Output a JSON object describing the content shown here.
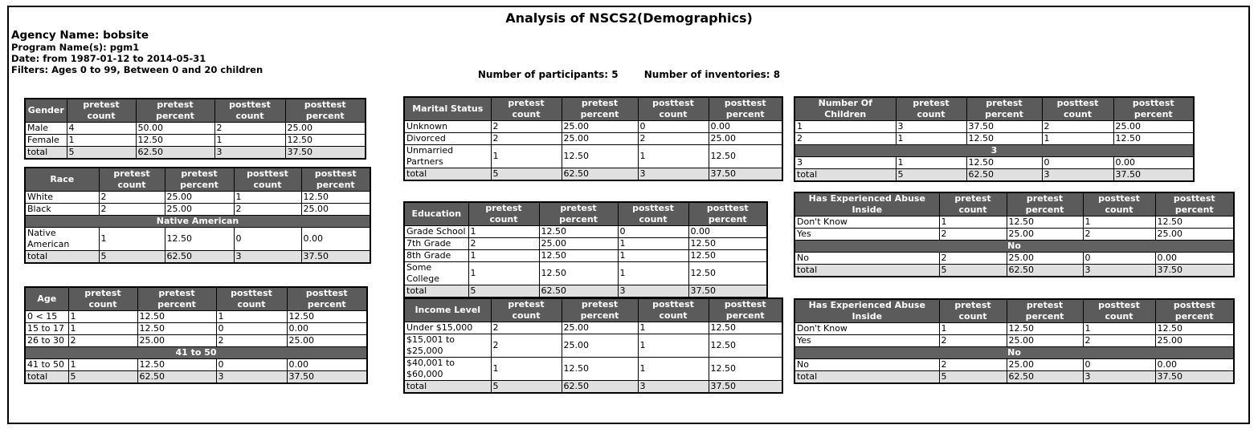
{
  "page": {
    "title": "Analysis of NSCS2(Demographics)",
    "meta_agency": "Agency Name: bobsite",
    "meta_program": "Program Name(s): pgm1",
    "meta_date": "Date: from 1987-01-12 to 2014-05-31",
    "meta_filters": "Filters: Ages 0 to 99, Between 0 and 20 children",
    "participants": "Number of participants: 5",
    "inventories": "Number of inventories: 8"
  },
  "colors": {
    "header_bg": "#5b5b5b",
    "section_bg": "#616161",
    "total_bg": "#e0e0e0",
    "header_text": "#ffffff",
    "border": "#000000"
  },
  "tables": {
    "gender": {
      "headers": [
        "Gender",
        "pretest count",
        "pretest percent",
        "posttest count",
        "posttest percent"
      ],
      "rows": [
        {
          "type": "data",
          "cells": [
            "Male",
            "4",
            "50.00",
            "2",
            "25.00"
          ]
        },
        {
          "type": "data",
          "cells": [
            "Female",
            "1",
            "12.50",
            "1",
            "12.50"
          ]
        },
        {
          "type": "total",
          "cells": [
            "total",
            "5",
            "62.50",
            "3",
            "37.50"
          ]
        }
      ]
    },
    "race": {
      "headers": [
        "Race",
        "pretest\ncount",
        "pretest\npercent",
        "posttest\ncount",
        "posttest\npercent"
      ],
      "rows": [
        {
          "type": "data",
          "cells": [
            "White",
            "2",
            "25.00",
            "1",
            "12.50"
          ]
        },
        {
          "type": "data",
          "cells": [
            "Black",
            "2",
            "25.00",
            "2",
            "25.00"
          ]
        },
        {
          "type": "section",
          "label": "Native American"
        },
        {
          "type": "data",
          "cells": [
            "Native\nAmerican",
            "1",
            "12.50",
            "0",
            "0.00"
          ]
        },
        {
          "type": "total",
          "cells": [
            "total",
            "5",
            "62.50",
            "3",
            "37.50"
          ]
        }
      ]
    },
    "age": {
      "headers": [
        "Age",
        "pretest count",
        "pretest percent",
        "posttest count",
        "posttest percent"
      ],
      "rows": [
        {
          "type": "data",
          "cells": [
            "0 < 15",
            "1",
            "12.50",
            "1",
            "12.50"
          ]
        },
        {
          "type": "data",
          "cells": [
            "15 to 17",
            "1",
            "12.50",
            "0",
            "0.00"
          ]
        },
        {
          "type": "data",
          "cells": [
            "26 to 30",
            "2",
            "25.00",
            "2",
            "25.00"
          ]
        },
        {
          "type": "section",
          "label": "41 to 50"
        },
        {
          "type": "data",
          "cells": [
            "41 to 50",
            "1",
            "12.50",
            "0",
            "0.00"
          ]
        },
        {
          "type": "total",
          "cells": [
            "total",
            "5",
            "62.50",
            "3",
            "37.50"
          ]
        }
      ]
    },
    "marital": {
      "headers": [
        "Marital Status",
        "pretest\ncount",
        "pretest\npercent",
        "posttest\ncount",
        "posttest\npercent"
      ],
      "rows": [
        {
          "type": "data",
          "cells": [
            "Unknown",
            "2",
            "25.00",
            "0",
            "0.00"
          ]
        },
        {
          "type": "data",
          "cells": [
            "Divorced",
            "2",
            "25.00",
            "2",
            "25.00"
          ]
        },
        {
          "type": "data",
          "cells": [
            "Unmarried\nPartners",
            "1",
            "12.50",
            "1",
            "12.50"
          ]
        },
        {
          "type": "total",
          "cells": [
            "total",
            "5",
            "62.50",
            "3",
            "37.50"
          ]
        }
      ]
    },
    "education": {
      "headers": [
        "Education",
        "pretest count",
        "pretest percent",
        "posttest count",
        "posttest percent"
      ],
      "rows": [
        {
          "type": "data",
          "cells": [
            "Grade School",
            "1",
            "12.50",
            "0",
            "0.00"
          ]
        },
        {
          "type": "data",
          "cells": [
            "7th Grade",
            "2",
            "25.00",
            "1",
            "12.50"
          ]
        },
        {
          "type": "data",
          "cells": [
            "8th Grade",
            "1",
            "12.50",
            "1",
            "12.50"
          ]
        },
        {
          "type": "data",
          "cells": [
            "Some College",
            "1",
            "12.50",
            "1",
            "12.50"
          ]
        },
        {
          "type": "total",
          "cells": [
            "total",
            "5",
            "62.50",
            "3",
            "37.50"
          ]
        }
      ]
    },
    "income": {
      "headers": [
        "Income Level",
        "pretest\ncount",
        "pretest\npercent",
        "posttest\ncount",
        "posttest\npercent"
      ],
      "rows": [
        {
          "type": "data",
          "cells": [
            "Under $15,000",
            "2",
            "25.00",
            "1",
            "12.50"
          ]
        },
        {
          "type": "data",
          "cells": [
            "$15,001 to\n$25,000",
            "2",
            "25.00",
            "1",
            "12.50"
          ]
        },
        {
          "type": "data",
          "cells": [
            "$40,001 to\n$60,000",
            "1",
            "12.50",
            "1",
            "12.50"
          ]
        },
        {
          "type": "total",
          "cells": [
            "total",
            "5",
            "62.50",
            "3",
            "37.50"
          ]
        }
      ]
    },
    "children": {
      "headers": [
        "Number Of Children",
        "pretest count",
        "pretest percent",
        "posttest count",
        "posttest percent"
      ],
      "rows": [
        {
          "type": "data",
          "cells": [
            "1",
            "3",
            "37.50",
            "2",
            "25.00"
          ]
        },
        {
          "type": "data",
          "cells": [
            "2",
            "1",
            "12.50",
            "1",
            "12.50"
          ]
        },
        {
          "type": "section",
          "label": "3"
        },
        {
          "type": "data",
          "cells": [
            "3",
            "1",
            "12.50",
            "0",
            "0.00"
          ]
        },
        {
          "type": "total",
          "cells": [
            "total",
            "5",
            "62.50",
            "3",
            "37.50"
          ]
        }
      ]
    },
    "abuse1": {
      "headers": [
        "Has Experienced Abuse\nInside",
        "pretest\ncount",
        "pretest\npercent",
        "posttest\ncount",
        "posttest\npercent"
      ],
      "rows": [
        {
          "type": "data",
          "cells": [
            "Don't Know",
            "1",
            "12.50",
            "1",
            "12.50"
          ]
        },
        {
          "type": "data",
          "cells": [
            "Yes",
            "2",
            "25.00",
            "2",
            "25.00"
          ]
        },
        {
          "type": "section",
          "label": "No"
        },
        {
          "type": "data",
          "cells": [
            "No",
            "2",
            "25.00",
            "0",
            "0.00"
          ]
        },
        {
          "type": "total",
          "cells": [
            "total",
            "5",
            "62.50",
            "3",
            "37.50"
          ]
        }
      ]
    },
    "abuse2": {
      "headers": [
        "Has Experienced Abuse\nInside",
        "pretest\ncount",
        "pretest\npercent",
        "posttest\ncount",
        "posttest\npercent"
      ],
      "rows": [
        {
          "type": "data",
          "cells": [
            "Don't Know",
            "1",
            "12.50",
            "1",
            "12.50"
          ]
        },
        {
          "type": "data",
          "cells": [
            "Yes",
            "2",
            "25.00",
            "2",
            "25.00"
          ]
        },
        {
          "type": "section",
          "label": "No"
        },
        {
          "type": "data",
          "cells": [
            "No",
            "2",
            "25.00",
            "0",
            "0.00"
          ]
        },
        {
          "type": "total",
          "cells": [
            "total",
            "5",
            "62.50",
            "3",
            "37.50"
          ]
        }
      ]
    }
  }
}
